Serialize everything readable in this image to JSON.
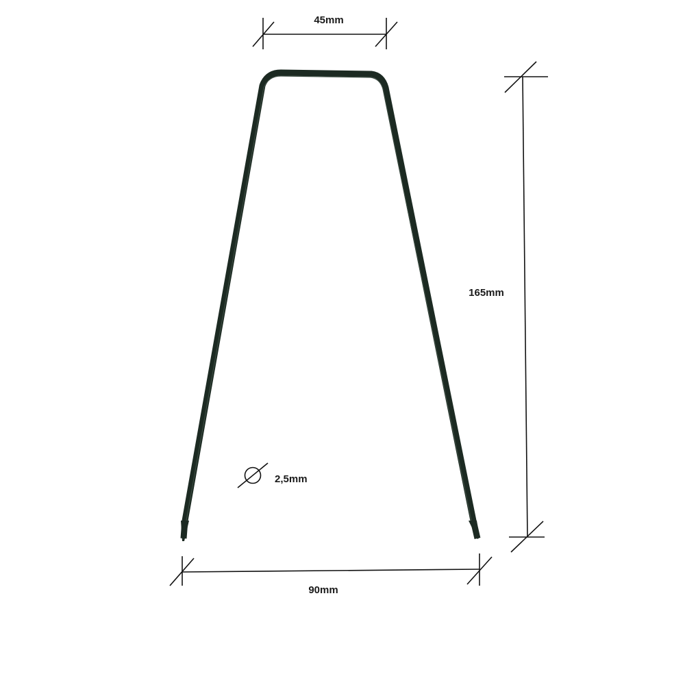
{
  "dimensions": {
    "top_width": "45mm",
    "height": "165mm",
    "bottom_width": "90mm",
    "wire_diameter": "2,5mm"
  },
  "colors": {
    "wire": "#1c2a22",
    "wire_highlight": "#3a4a40",
    "dimension_lines": "#111111",
    "background": "#ffffff"
  },
  "icons": {
    "diameter": "diameter-symbol-icon"
  }
}
